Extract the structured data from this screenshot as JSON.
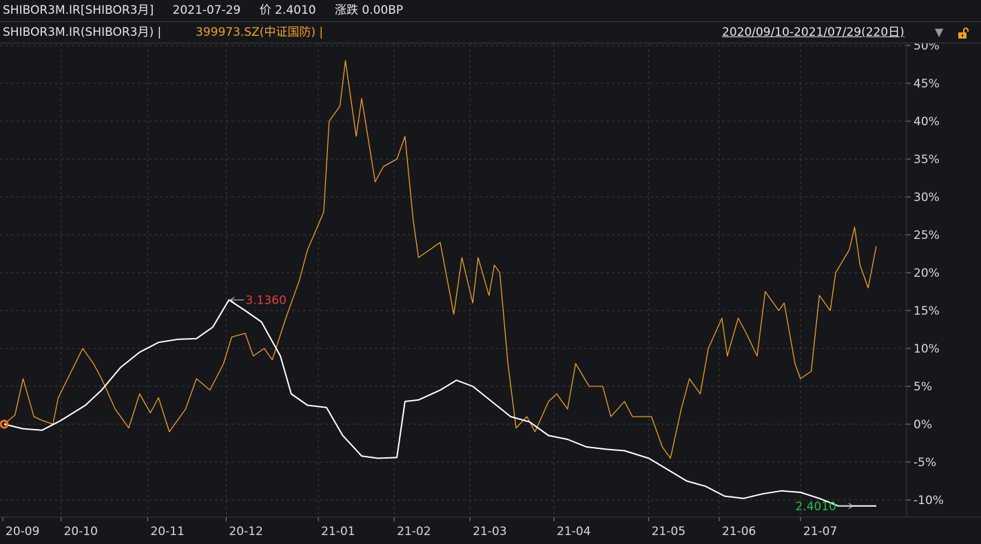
{
  "header": {
    "symbol": "SHIBOR3M.IR[SHIBOR3月]",
    "date": "2021-07-29",
    "price": "价 2.4010",
    "change": "涨跌 0.00BP"
  },
  "subheader": {
    "series1_label": "SHIBOR3M.IR(SHIBOR3月) |",
    "series2_label": "399973.SZ(中证国防) |",
    "date_range": "2020/09/10-2021/07/29(220日)",
    "dropdown_icon": "triangle-down-icon",
    "lock_icon": "lock-icon"
  },
  "colors": {
    "background": "#16171b",
    "series1": "#ffffff",
    "series2": "#f0a020",
    "grid": "#3a3b40",
    "max_label": "#e8393a",
    "last_label": "#22c04a"
  },
  "chart_data": {
    "type": "line",
    "x_range": [
      "2020-09-10",
      "2021-07-29"
    ],
    "x_ticks": [
      "20-09",
      "20-10",
      "20-11",
      "20-12",
      "21-01",
      "21-02",
      "21-03",
      "21-04",
      "21-05",
      "21-06",
      "21-07"
    ],
    "y_ticks": [
      "50%",
      "45%",
      "40%",
      "35%",
      "30%",
      "25%",
      "20%",
      "15%",
      "10%",
      "5%",
      "0%",
      "-5%",
      "-10%"
    ],
    "ylim": [
      -12,
      50
    ],
    "grid": true,
    "series": [
      {
        "name": "SHIBOR3M.IR(SHIBOR3月)",
        "values_pct": [
          [
            "2020-09-10",
            0
          ],
          [
            "2020-09-17",
            -0.6
          ],
          [
            "2020-09-24",
            -0.8
          ],
          [
            "2020-10-01",
            0.5
          ],
          [
            "2020-10-10",
            2.5
          ],
          [
            "2020-10-16",
            4.5
          ],
          [
            "2020-10-23",
            7.5
          ],
          [
            "2020-10-30",
            9.5
          ],
          [
            "2020-11-06",
            10.8
          ],
          [
            "2020-11-13",
            11.2
          ],
          [
            "2020-11-20",
            11.3
          ],
          [
            "2020-11-26",
            12.8
          ],
          [
            "2020-12-02",
            16.4
          ],
          [
            "2020-12-08",
            15
          ],
          [
            "2020-12-14",
            13.5
          ],
          [
            "2020-12-21",
            9
          ],
          [
            "2020-12-25",
            4
          ],
          [
            "2020-12-31",
            2.5
          ],
          [
            "2021-01-07",
            2.2
          ],
          [
            "2021-01-13",
            -1.5
          ],
          [
            "2021-01-20",
            -4.2
          ],
          [
            "2021-01-26",
            -4.5
          ],
          [
            "2021-02-02",
            -4.4
          ],
          [
            "2021-02-05",
            3
          ],
          [
            "2021-02-10",
            3.2
          ],
          [
            "2021-02-18",
            4.5
          ],
          [
            "2021-02-24",
            5.8
          ],
          [
            "2021-03-02",
            5
          ],
          [
            "2021-03-09",
            3
          ],
          [
            "2021-03-16",
            1
          ],
          [
            "2021-03-23",
            0.3
          ],
          [
            "2021-03-30",
            -1.5
          ],
          [
            "2021-04-06",
            -2
          ],
          [
            "2021-04-13",
            -3
          ],
          [
            "2021-04-20",
            -3.3
          ],
          [
            "2021-04-27",
            -3.5
          ],
          [
            "2021-05-06",
            -4.5
          ],
          [
            "2021-05-13",
            -6
          ],
          [
            "2021-05-20",
            -7.5
          ],
          [
            "2021-05-27",
            -8.2
          ],
          [
            "2021-06-03",
            -9.5
          ],
          [
            "2021-06-10",
            -9.8
          ],
          [
            "2021-06-17",
            -9.2
          ],
          [
            "2021-06-24",
            -8.8
          ],
          [
            "2021-07-01",
            -9
          ],
          [
            "2021-07-08",
            -9.8
          ],
          [
            "2021-07-15",
            -10.8
          ],
          [
            "2021-07-29",
            -10.8
          ]
        ]
      },
      {
        "name": "399973.SZ(中证国防)",
        "values_pct": [
          [
            "2020-09-10",
            0
          ],
          [
            "2020-09-14",
            1.2
          ],
          [
            "2020-09-17",
            6
          ],
          [
            "2020-09-21",
            1
          ],
          [
            "2020-09-24",
            0.5
          ],
          [
            "2020-09-28",
            0
          ],
          [
            "2020-09-30",
            3.5
          ],
          [
            "2020-10-09",
            10
          ],
          [
            "2020-10-13",
            8
          ],
          [
            "2020-10-16",
            6
          ],
          [
            "2020-10-21",
            2
          ],
          [
            "2020-10-26",
            -0.5
          ],
          [
            "2020-10-30",
            4
          ],
          [
            "2020-11-03",
            1.5
          ],
          [
            "2020-11-06",
            3.5
          ],
          [
            "2020-11-10",
            -1
          ],
          [
            "2020-11-16",
            2
          ],
          [
            "2020-11-20",
            6
          ],
          [
            "2020-11-25",
            4.5
          ],
          [
            "2020-11-30",
            8
          ],
          [
            "2020-12-03",
            11.5
          ],
          [
            "2020-12-08",
            12
          ],
          [
            "2020-12-11",
            9
          ],
          [
            "2020-12-15",
            10
          ],
          [
            "2020-12-18",
            8.5
          ],
          [
            "2020-12-23",
            14
          ],
          [
            "2020-12-28",
            19
          ],
          [
            "2020-12-31",
            23
          ],
          [
            "2021-01-06",
            28
          ],
          [
            "2021-01-08",
            40
          ],
          [
            "2021-01-12",
            42
          ],
          [
            "2021-01-14",
            48
          ],
          [
            "2021-01-18",
            38
          ],
          [
            "2021-01-20",
            43
          ],
          [
            "2021-01-25",
            32
          ],
          [
            "2021-01-28",
            34
          ],
          [
            "2021-02-02",
            35
          ],
          [
            "2021-02-05",
            38
          ],
          [
            "2021-02-08",
            27
          ],
          [
            "2021-02-10",
            22
          ],
          [
            "2021-02-18",
            24
          ],
          [
            "2021-02-23",
            14.5
          ],
          [
            "2021-02-26",
            22
          ],
          [
            "2021-03-02",
            16
          ],
          [
            "2021-03-04",
            22
          ],
          [
            "2021-03-08",
            17
          ],
          [
            "2021-03-10",
            21
          ],
          [
            "2021-03-12",
            20
          ],
          [
            "2021-03-15",
            8
          ],
          [
            "2021-03-18",
            -0.5
          ],
          [
            "2021-03-22",
            1
          ],
          [
            "2021-03-25",
            -1
          ],
          [
            "2021-03-30",
            3
          ],
          [
            "2021-04-02",
            4
          ],
          [
            "2021-04-06",
            2
          ],
          [
            "2021-04-09",
            8
          ],
          [
            "2021-04-14",
            5
          ],
          [
            "2021-04-19",
            5
          ],
          [
            "2021-04-22",
            1
          ],
          [
            "2021-04-27",
            3
          ],
          [
            "2021-04-30",
            1
          ],
          [
            "2021-05-07",
            1
          ],
          [
            "2021-05-11",
            -3
          ],
          [
            "2021-05-14",
            -4.5
          ],
          [
            "2021-05-18",
            2
          ],
          [
            "2021-05-21",
            6
          ],
          [
            "2021-05-25",
            4
          ],
          [
            "2021-05-28",
            10
          ],
          [
            "2021-06-02",
            14
          ],
          [
            "2021-06-04",
            9
          ],
          [
            "2021-06-08",
            14
          ],
          [
            "2021-06-11",
            12
          ],
          [
            "2021-06-15",
            9
          ],
          [
            "2021-06-18",
            17.5
          ],
          [
            "2021-06-23",
            15
          ],
          [
            "2021-06-25",
            16
          ],
          [
            "2021-06-29",
            8
          ],
          [
            "2021-07-01",
            6
          ],
          [
            "2021-07-05",
            7
          ],
          [
            "2021-07-08",
            17
          ],
          [
            "2021-07-12",
            15
          ],
          [
            "2021-07-14",
            20
          ],
          [
            "2021-07-19",
            23
          ],
          [
            "2021-07-21",
            26
          ],
          [
            "2021-07-23",
            21
          ],
          [
            "2021-07-26",
            18
          ],
          [
            "2021-07-29",
            23.5
          ]
        ]
      }
    ],
    "annotations": [
      {
        "label": "3.1360",
        "series": "SHIBOR3M.IR(SHIBOR3月)",
        "date": "2020-12-02",
        "value_pct": 16.4
      },
      {
        "label": "2.4010",
        "series": "SHIBOR3M.IR(SHIBOR3月)",
        "date": "2021-07-29",
        "value_pct": -10.8
      }
    ]
  }
}
